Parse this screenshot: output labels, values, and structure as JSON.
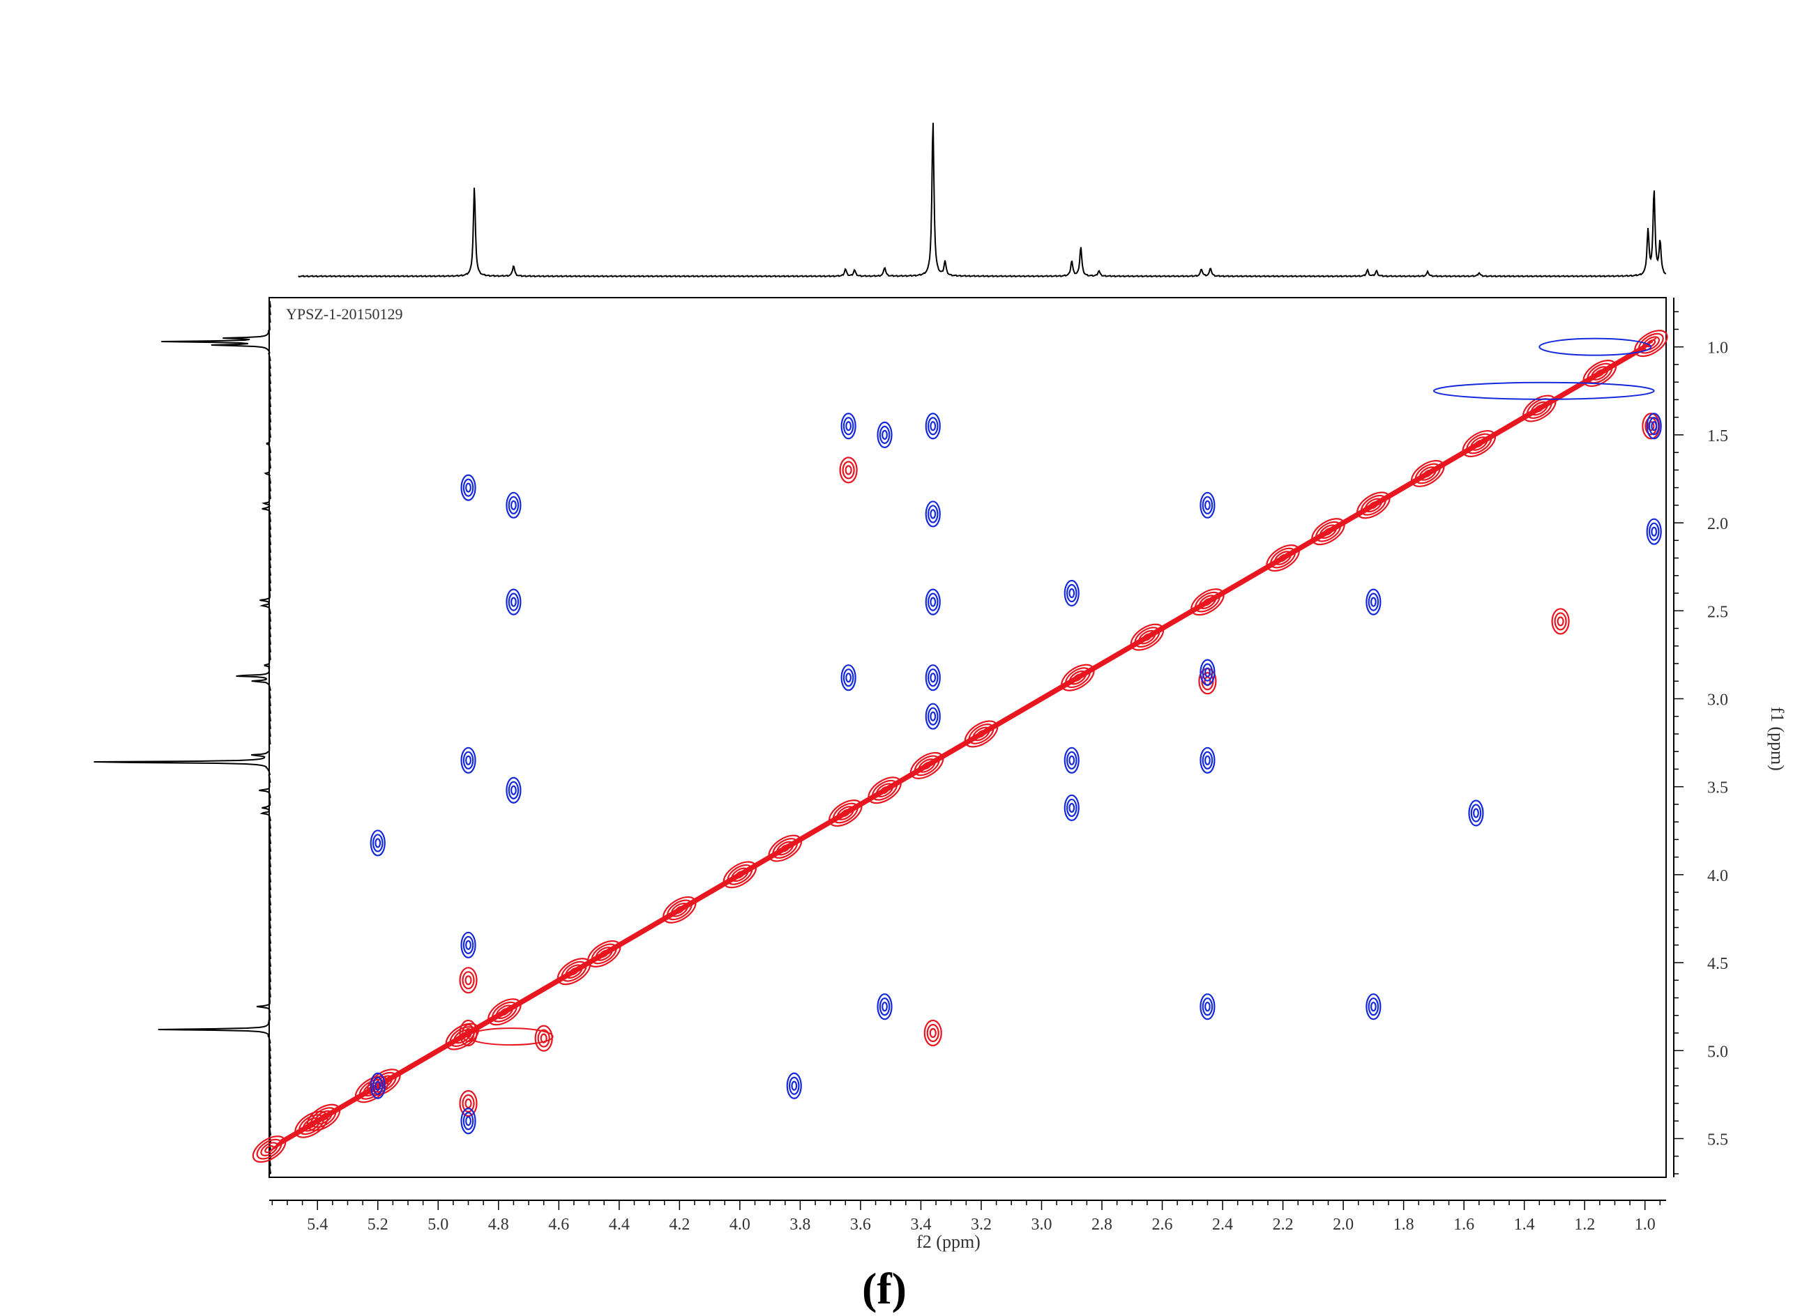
{
  "chart_data": {
    "type": "contour",
    "title": "YPSZ-1-20150129",
    "xlabel": "f2 (ppm)",
    "ylabel": "f1 (ppm)",
    "caption": "(f)",
    "xlim": [
      5.56,
      0.93
    ],
    "ylim": [
      0.72,
      5.72
    ],
    "x_ticks": [
      "5.4",
      "5.2",
      "5.0",
      "4.8",
      "4.6",
      "4.4",
      "4.2",
      "4.0",
      "3.8",
      "3.6",
      "3.4",
      "3.2",
      "3.0",
      "2.8",
      "2.6",
      "2.4",
      "2.2",
      "2.0",
      "1.8",
      "1.6",
      "1.4",
      "1.2",
      "1.0"
    ],
    "y_ticks": [
      "1.0",
      "1.5",
      "2.0",
      "2.5",
      "3.0",
      "3.5",
      "4.0",
      "4.5",
      "5.0",
      "5.5"
    ],
    "colors": {
      "positive": "#e8141e",
      "negative": "#1428dc",
      "projection": "#000000"
    },
    "projection_peaks": [
      {
        "ppm": 4.88,
        "height": 1.0
      },
      {
        "ppm": 4.75,
        "height": 0.12
      },
      {
        "ppm": 3.65,
        "height": 0.08
      },
      {
        "ppm": 3.62,
        "height": 0.07
      },
      {
        "ppm": 3.52,
        "height": 0.1
      },
      {
        "ppm": 3.36,
        "height": 1.75
      },
      {
        "ppm": 3.32,
        "height": 0.16
      },
      {
        "ppm": 2.9,
        "height": 0.17
      },
      {
        "ppm": 2.87,
        "height": 0.33
      },
      {
        "ppm": 2.81,
        "height": 0.06
      },
      {
        "ppm": 2.47,
        "height": 0.08
      },
      {
        "ppm": 2.44,
        "height": 0.09
      },
      {
        "ppm": 1.92,
        "height": 0.07
      },
      {
        "ppm": 1.89,
        "height": 0.06
      },
      {
        "ppm": 1.72,
        "height": 0.05
      },
      {
        "ppm": 1.55,
        "height": 0.04
      },
      {
        "ppm": 0.99,
        "height": 0.5
      },
      {
        "ppm": 0.97,
        "height": 0.95
      },
      {
        "ppm": 0.95,
        "height": 0.38
      }
    ],
    "diagonal_peaks": [
      5.56,
      5.42,
      5.38,
      5.22,
      5.18,
      4.92,
      4.78,
      4.55,
      4.45,
      4.2,
      4.0,
      3.85,
      3.65,
      3.52,
      3.38,
      3.2,
      2.88,
      2.65,
      2.45,
      2.2,
      2.05,
      1.9,
      1.72,
      1.55,
      1.35,
      1.15,
      0.98
    ],
    "positive_cross_peaks": [
      {
        "x": 4.9,
        "y": 4.9
      },
      {
        "x": 4.9,
        "y": 4.6
      },
      {
        "x": 4.9,
        "y": 5.3
      },
      {
        "x": 3.64,
        "y": 1.7
      },
      {
        "x": 3.36,
        "y": 4.9
      },
      {
        "x": 2.45,
        "y": 2.9
      },
      {
        "x": 0.98,
        "y": 1.45
      },
      {
        "x": 1.28,
        "y": 2.56
      },
      {
        "x": 4.65,
        "y": 4.93
      }
    ],
    "negative_cross_peaks": [
      {
        "x": 4.9,
        "y": 1.8
      },
      {
        "x": 4.9,
        "y": 3.35
      },
      {
        "x": 4.9,
        "y": 4.4
      },
      {
        "x": 4.9,
        "y": 5.4
      },
      {
        "x": 4.75,
        "y": 1.9
      },
      {
        "x": 4.75,
        "y": 2.45
      },
      {
        "x": 4.75,
        "y": 3.52
      },
      {
        "x": 5.2,
        "y": 3.82
      },
      {
        "x": 5.2,
        "y": 5.2
      },
      {
        "x": 3.64,
        "y": 1.45
      },
      {
        "x": 3.64,
        "y": 2.88
      },
      {
        "x": 3.52,
        "y": 1.5
      },
      {
        "x": 3.52,
        "y": 4.75
      },
      {
        "x": 3.36,
        "y": 1.45
      },
      {
        "x": 3.36,
        "y": 1.95
      },
      {
        "x": 3.36,
        "y": 2.45
      },
      {
        "x": 3.36,
        "y": 2.88
      },
      {
        "x": 3.36,
        "y": 3.1
      },
      {
        "x": 3.82,
        "y": 5.2
      },
      {
        "x": 2.9,
        "y": 2.4
      },
      {
        "x": 2.9,
        "y": 3.35
      },
      {
        "x": 2.9,
        "y": 3.62
      },
      {
        "x": 2.45,
        "y": 1.9
      },
      {
        "x": 2.45,
        "y": 2.85
      },
      {
        "x": 2.45,
        "y": 3.35
      },
      {
        "x": 2.45,
        "y": 4.75
      },
      {
        "x": 1.9,
        "y": 2.45
      },
      {
        "x": 1.9,
        "y": 4.75
      },
      {
        "x": 1.56,
        "y": 3.65
      },
      {
        "x": 0.97,
        "y": 2.05
      },
      {
        "x": 0.97,
        "y": 1.45
      }
    ]
  }
}
